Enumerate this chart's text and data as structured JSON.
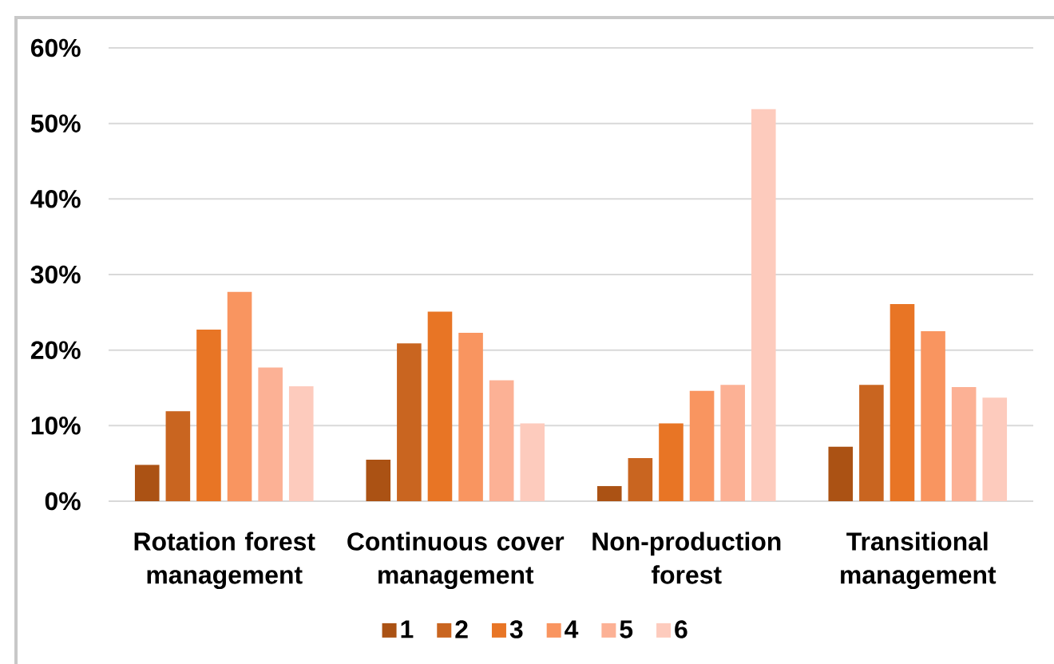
{
  "chart_data": {
    "type": "bar",
    "categories": [
      "Rotation forest management",
      "Continuous cover management",
      "Non-production forest",
      "Transitional management"
    ],
    "series": [
      {
        "name": "1",
        "color": "#ab5214",
        "values": [
          4.8,
          5.5,
          2.0,
          7.2
        ]
      },
      {
        "name": "2",
        "color": "#c96520",
        "values": [
          11.9,
          20.9,
          5.7,
          15.4
        ]
      },
      {
        "name": "3",
        "color": "#e87525",
        "values": [
          22.7,
          25.1,
          10.3,
          26.1
        ]
      },
      {
        "name": "4",
        "color": "#f99560",
        "values": [
          27.7,
          22.3,
          14.6,
          22.5
        ]
      },
      {
        "name": "5",
        "color": "#fcb195",
        "values": [
          17.7,
          16.0,
          15.4,
          15.1
        ]
      },
      {
        "name": "6",
        "color": "#fdcbbd",
        "values": [
          15.2,
          10.3,
          51.9,
          13.7
        ]
      }
    ],
    "ylim": [
      0,
      60
    ],
    "yticks": [
      {
        "value": 0,
        "label": "0%"
      },
      {
        "value": 10,
        "label": "10%"
      },
      {
        "value": 20,
        "label": "20%"
      },
      {
        "value": 30,
        "label": "30%"
      },
      {
        "value": 40,
        "label": "40%"
      },
      {
        "value": 50,
        "label": "50%"
      },
      {
        "value": 60,
        "label": "60%"
      }
    ],
    "grid": "y",
    "legend": "bottom"
  }
}
